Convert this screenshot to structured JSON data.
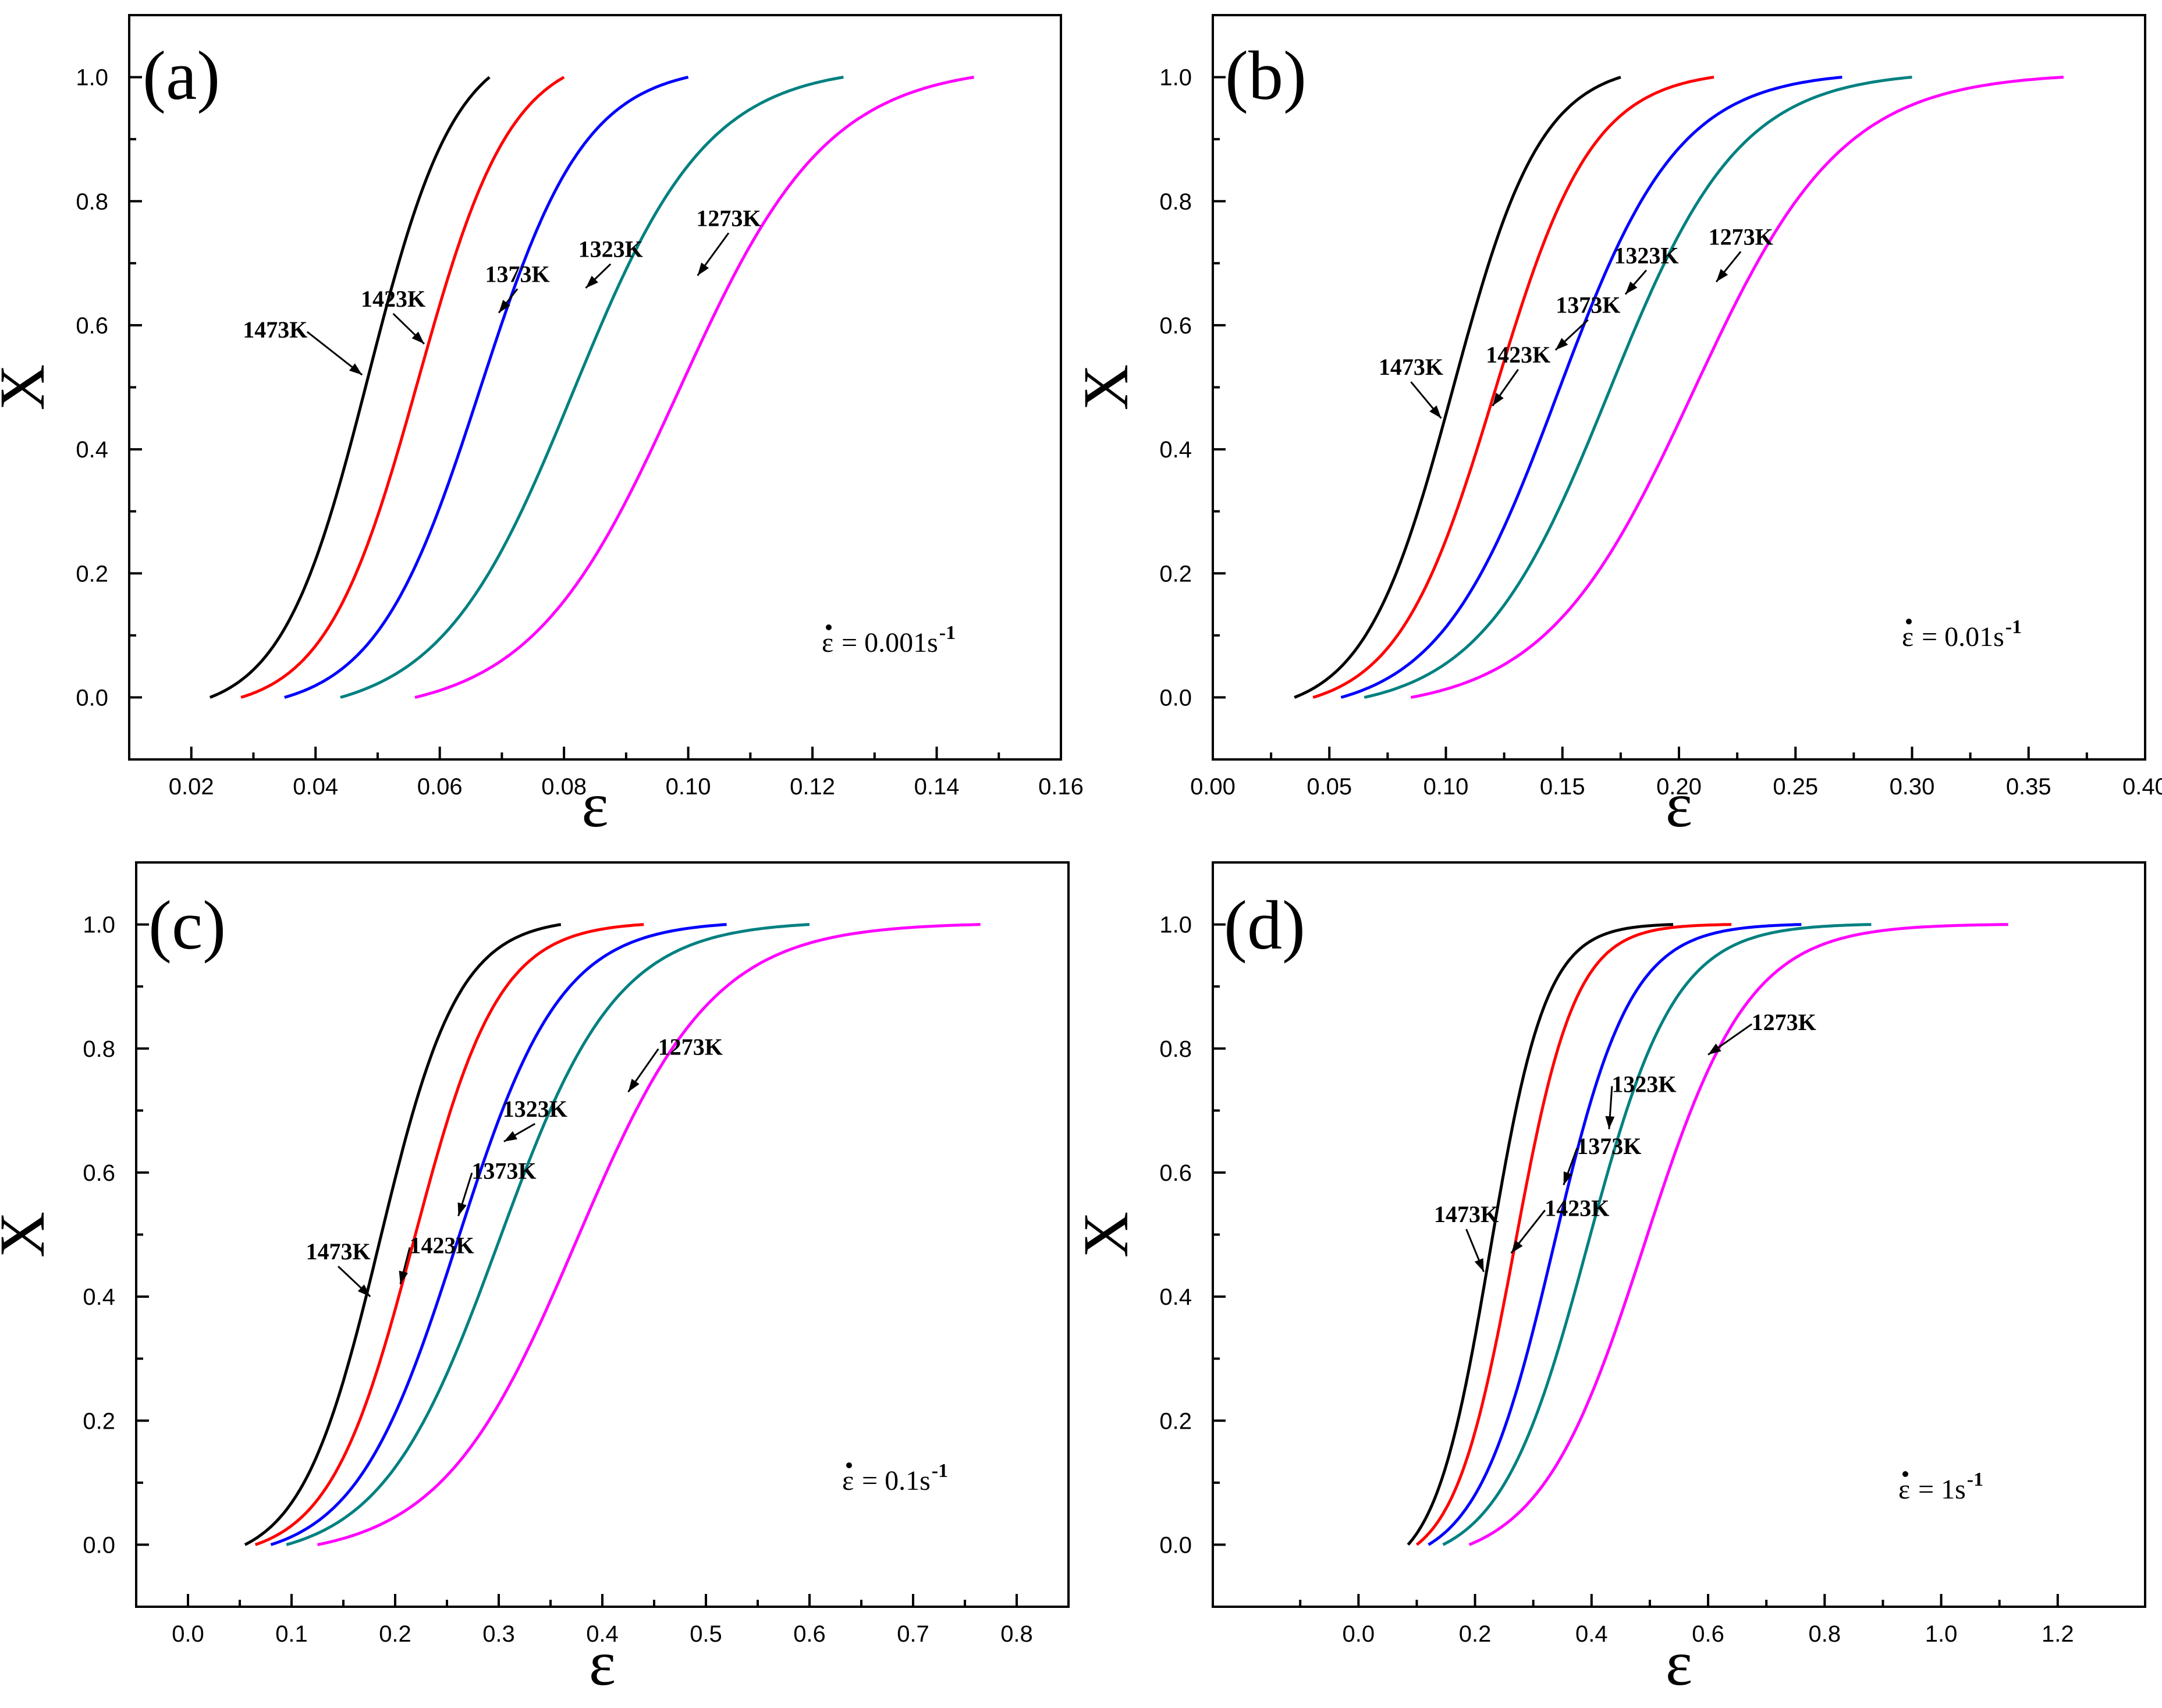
{
  "figure": {
    "panel_count": 4
  },
  "chart_data": [
    {
      "type": "line",
      "panel": "(a)",
      "xlabel": "ε",
      "ylabel": "X",
      "xlim": [
        0.01,
        0.16
      ],
      "ylim": [
        -0.1,
        1.1
      ],
      "xticks": [
        0.02,
        0.04,
        0.06,
        0.08,
        0.1,
        0.12,
        0.14,
        0.16
      ],
      "xtick_labels": [
        "0.02",
        "0.04",
        "0.06",
        "0.08",
        "0.10",
        "0.12",
        "0.14",
        "0.16"
      ],
      "yticks": [
        0.0,
        0.2,
        0.4,
        0.6,
        0.8,
        1.0
      ],
      "ytick_labels": [
        "0.0",
        "0.2",
        "0.4",
        "0.6",
        "0.8",
        "1.0"
      ],
      "strain_rate": {
        "prefix": "= 0.001s",
        "exponent": "-1"
      },
      "series": [
        {
          "name": "1473K",
          "color": "#000000",
          "start": 0.023,
          "end": 0.068,
          "x50": 0.0485,
          "k": 0.007
        },
        {
          "name": "1423K",
          "color": "#ff0000",
          "start": 0.028,
          "end": 0.08,
          "x50": 0.0565,
          "k": 0.0075
        },
        {
          "name": "1373K",
          "color": "#0000ff",
          "start": 0.035,
          "end": 0.1,
          "x50": 0.0665,
          "k": 0.0085
        },
        {
          "name": "1323K",
          "color": "#008080",
          "start": 0.044,
          "end": 0.125,
          "x50": 0.0815,
          "k": 0.0108
        },
        {
          "name": "1273K",
          "color": "#ff00ff",
          "start": 0.056,
          "end": 0.146,
          "x50": 0.0985,
          "k": 0.012
        }
      ],
      "annotations": [
        {
          "text": "1473K",
          "x": 0.0335,
          "y": 0.58,
          "tx": 0.0475,
          "ty": 0.52
        },
        {
          "text": "1423K",
          "x": 0.0525,
          "y": 0.63,
          "tx": 0.0575,
          "ty": 0.57
        },
        {
          "text": "1373K",
          "x": 0.0725,
          "y": 0.67,
          "tx": 0.0695,
          "ty": 0.62
        },
        {
          "text": "1323K",
          "x": 0.0875,
          "y": 0.71,
          "tx": 0.0835,
          "ty": 0.66
        },
        {
          "text": "1273K",
          "x": 0.1065,
          "y": 0.76,
          "tx": 0.1015,
          "ty": 0.68
        }
      ]
    },
    {
      "type": "line",
      "panel": "(b)",
      "xlabel": "ε",
      "ylabel": "X",
      "xlim": [
        0.0,
        0.4
      ],
      "ylim": [
        -0.1,
        1.1
      ],
      "xticks": [
        0.0,
        0.05,
        0.1,
        0.15,
        0.2,
        0.25,
        0.3,
        0.35,
        0.4
      ],
      "xtick_labels": [
        "0.00",
        "0.05",
        "0.10",
        "0.15",
        "0.20",
        "0.25",
        "0.30",
        "0.35",
        "0.40"
      ],
      "yticks": [
        0.0,
        0.2,
        0.4,
        0.6,
        0.8,
        1.0
      ],
      "ytick_labels": [
        "0.0",
        "0.2",
        "0.4",
        "0.6",
        "0.8",
        "1.0"
      ],
      "strain_rate": {
        "prefix": "= 0.01s",
        "exponent": "-1"
      },
      "series": [
        {
          "name": "1473K",
          "color": "#000000",
          "start": 0.035,
          "end": 0.175,
          "x50": 0.103,
          "k": 0.019
        },
        {
          "name": "1423K",
          "color": "#ff0000",
          "start": 0.043,
          "end": 0.215,
          "x50": 0.121,
          "k": 0.021
        },
        {
          "name": "1373K",
          "color": "#0000ff",
          "start": 0.055,
          "end": 0.27,
          "x50": 0.148,
          "k": 0.026
        },
        {
          "name": "1323K",
          "color": "#008080",
          "start": 0.065,
          "end": 0.3,
          "x50": 0.17,
          "k": 0.028
        },
        {
          "name": "1273K",
          "color": "#ff00ff",
          "start": 0.085,
          "end": 0.365,
          "x50": 0.206,
          "k": 0.032
        }
      ],
      "annotations": [
        {
          "text": "1473K",
          "x": 0.085,
          "y": 0.52,
          "tx": 0.098,
          "ty": 0.45
        },
        {
          "text": "1423K",
          "x": 0.131,
          "y": 0.54,
          "tx": 0.12,
          "ty": 0.47
        },
        {
          "text": "1373K",
          "x": 0.161,
          "y": 0.62,
          "tx": 0.147,
          "ty": 0.56
        },
        {
          "text": "1323K",
          "x": 0.186,
          "y": 0.7,
          "tx": 0.177,
          "ty": 0.65
        },
        {
          "text": "1273K",
          "x": 0.2265,
          "y": 0.73,
          "tx": 0.216,
          "ty": 0.67
        }
      ]
    },
    {
      "type": "line",
      "panel": "(c)",
      "xlabel": "ε",
      "ylabel": "X",
      "xlim": [
        -0.05,
        0.85
      ],
      "ylim": [
        -0.1,
        1.1
      ],
      "xticks": [
        0.0,
        0.1,
        0.2,
        0.3,
        0.4,
        0.5,
        0.6,
        0.7,
        0.8
      ],
      "xtick_labels": [
        "0.0",
        "0.1",
        "0.2",
        "0.3",
        "0.4",
        "0.5",
        "0.6",
        "0.7",
        "0.8"
      ],
      "yticks": [
        0.0,
        0.2,
        0.4,
        0.6,
        0.8,
        1.0
      ],
      "ytick_labels": [
        "0.0",
        "0.2",
        "0.4",
        "0.6",
        "0.8",
        "1.0"
      ],
      "strain_rate": {
        "prefix": "= 0.1s",
        "exponent": "-1"
      },
      "series": [
        {
          "name": "1473K",
          "color": "#000000",
          "start": 0.055,
          "end": 0.36,
          "x50": 0.185,
          "k": 0.038
        },
        {
          "name": "1423K",
          "color": "#ff0000",
          "start": 0.065,
          "end": 0.44,
          "x50": 0.218,
          "k": 0.041
        },
        {
          "name": "1373K",
          "color": "#0000ff",
          "start": 0.08,
          "end": 0.52,
          "x50": 0.26,
          "k": 0.05
        },
        {
          "name": "1323K",
          "color": "#008080",
          "start": 0.095,
          "end": 0.6,
          "x50": 0.3,
          "k": 0.057
        },
        {
          "name": "1273K",
          "color": "#ff00ff",
          "start": 0.125,
          "end": 0.765,
          "x50": 0.375,
          "k": 0.066
        }
      ],
      "annotations": [
        {
          "text": "1473K",
          "x": 0.145,
          "y": 0.46,
          "tx": 0.176,
          "ty": 0.4
        },
        {
          "text": "1423K",
          "x": 0.245,
          "y": 0.47,
          "tx": 0.205,
          "ty": 0.42
        },
        {
          "text": "1373K",
          "x": 0.305,
          "y": 0.59,
          "tx": 0.261,
          "ty": 0.53
        },
        {
          "text": "1323K",
          "x": 0.335,
          "y": 0.69,
          "tx": 0.305,
          "ty": 0.65
        },
        {
          "text": "1273K",
          "x": 0.485,
          "y": 0.79,
          "tx": 0.425,
          "ty": 0.73
        }
      ]
    },
    {
      "type": "line",
      "panel": "(d)",
      "xlabel": "ε",
      "ylabel": "X",
      "xlim": [
        -0.25,
        1.35
      ],
      "ylim": [
        -0.1,
        1.1
      ],
      "xticks": [
        0.0,
        0.2,
        0.4,
        0.6,
        0.8,
        1.0,
        1.2
      ],
      "xtick_labels": [
        "0.0",
        "0.2",
        "0.4",
        "0.6",
        "0.8",
        "1.0",
        "1.2"
      ],
      "yticks": [
        0.0,
        0.2,
        0.4,
        0.6,
        0.8,
        1.0
      ],
      "ytick_labels": [
        "0.0",
        "0.2",
        "0.4",
        "0.6",
        "0.8",
        "1.0"
      ],
      "strain_rate": {
        "prefix": "= 1s",
        "exponent": "-1"
      },
      "series": [
        {
          "name": "1473K",
          "color": "#000000",
          "start": 0.085,
          "end": 0.54,
          "x50": 0.226,
          "k": 0.048
        },
        {
          "name": "1423K",
          "color": "#ff0000",
          "start": 0.1,
          "end": 0.64,
          "x50": 0.268,
          "k": 0.052
        },
        {
          "name": "1373K",
          "color": "#0000ff",
          "start": 0.12,
          "end": 0.76,
          "x50": 0.335,
          "k": 0.066
        },
        {
          "name": "1323K",
          "color": "#008080",
          "start": 0.145,
          "end": 0.88,
          "x50": 0.393,
          "k": 0.075
        },
        {
          "name": "1273K",
          "color": "#ff00ff",
          "start": 0.19,
          "end": 1.115,
          "x50": 0.49,
          "k": 0.09
        }
      ],
      "annotations": [
        {
          "text": "1473K",
          "x": 0.185,
          "y": 0.52,
          "tx": 0.215,
          "ty": 0.44
        },
        {
          "text": "1423K",
          "x": 0.375,
          "y": 0.53,
          "tx": 0.262,
          "ty": 0.47
        },
        {
          "text": "1373K",
          "x": 0.43,
          "y": 0.63,
          "tx": 0.352,
          "ty": 0.58
        },
        {
          "text": "1323K",
          "x": 0.49,
          "y": 0.73,
          "tx": 0.43,
          "ty": 0.67
        },
        {
          "text": "1273K",
          "x": 0.73,
          "y": 0.83,
          "tx": 0.6,
          "ty": 0.79
        }
      ]
    }
  ]
}
